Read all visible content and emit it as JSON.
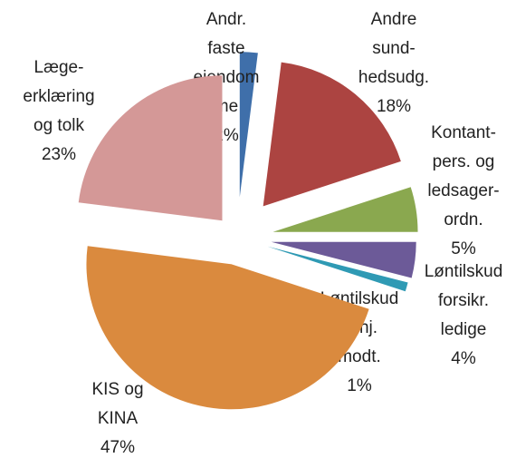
{
  "chart_data": {
    "type": "pie",
    "categories": [
      "Andr.\nfaste\nejendom\nme",
      "Andre\nsund-\nhedsudg.",
      "Kontant-\npers. og\nledsager-\nordn.",
      "Løntilskud\nforsikr.\nledige",
      "Løntilskud\nkt.hj.\nmodt.",
      "KIS og\nKINA",
      "Læge-\nerklæring\nog tolk"
    ],
    "values": [
      2,
      18,
      5,
      4,
      1,
      47,
      23
    ],
    "value_labels": [
      "2%",
      "18%",
      "5%",
      "4%",
      "1%",
      "47%",
      "23%"
    ],
    "colors": [
      "#3f6faa",
      "#ac4441",
      "#8aa84f",
      "#6c5a98",
      "#2f9ab4",
      "#da8a3e",
      "#d49897"
    ]
  }
}
